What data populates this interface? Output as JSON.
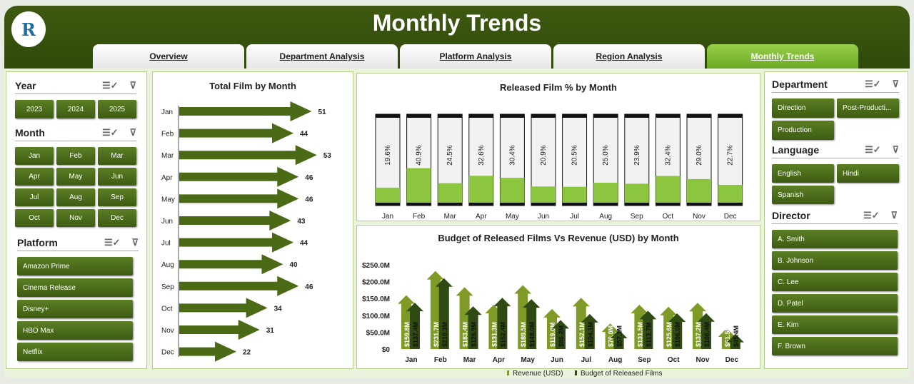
{
  "header": {
    "title": "Monthly Trends",
    "logo_text": "R"
  },
  "tabs": [
    {
      "label": "Overview"
    },
    {
      "label": "Department Analysis"
    },
    {
      "label": "Platform Analysis"
    },
    {
      "label": "Region Analysis"
    },
    {
      "label": "Monthly Trends",
      "active": true
    }
  ],
  "slicers": {
    "year": {
      "title": "Year",
      "items": [
        "2023",
        "2024",
        "2025"
      ]
    },
    "month": {
      "title": "Month",
      "items": [
        "Jan",
        "Feb",
        "Mar",
        "Apr",
        "May",
        "Jun",
        "Jul",
        "Aug",
        "Sep",
        "Oct",
        "Nov",
        "Dec"
      ]
    },
    "platform": {
      "title": "Platform",
      "items": [
        "Amazon Prime",
        "Cinema Release",
        "Disney+",
        "HBO Max",
        "Netflix"
      ]
    },
    "department": {
      "title": "Department",
      "items": [
        "Direction",
        "Post-Producti...",
        "Production"
      ]
    },
    "language": {
      "title": "Language",
      "items": [
        "English",
        "Hindi",
        "Spanish"
      ]
    },
    "director": {
      "title": "Director",
      "items": [
        "A. Smith",
        "B. Johnson",
        "C. Lee",
        "D. Patel",
        "E. Kim",
        "F. Brown"
      ]
    }
  },
  "chart_data": [
    {
      "type": "bar",
      "title": "Total Film by Month",
      "categories": [
        "Jan",
        "Feb",
        "Mar",
        "Apr",
        "May",
        "Jun",
        "Jul",
        "Aug",
        "Sep",
        "Oct",
        "Nov",
        "Dec"
      ],
      "values": [
        51,
        44,
        53,
        46,
        46,
        43,
        44,
        40,
        46,
        34,
        31,
        22
      ]
    },
    {
      "type": "bar",
      "title": "Released Film % by Month",
      "categories": [
        "Jan",
        "Feb",
        "Mar",
        "Apr",
        "May",
        "Jun",
        "Jul",
        "Aug",
        "Sep",
        "Oct",
        "Nov",
        "Dec"
      ],
      "values": [
        19.6,
        40.9,
        24.5,
        32.6,
        30.4,
        20.9,
        20.5,
        25.0,
        23.9,
        32.4,
        29.0,
        22.7
      ],
      "labels": [
        "19.6%",
        "40.9%",
        "24.5%",
        "32.6%",
        "30.4%",
        "20.9%",
        "20.5%",
        "25.0%",
        "23.9%",
        "32.4%",
        "29.0%",
        "22.7%"
      ],
      "ylim": [
        0,
        100
      ]
    },
    {
      "type": "bar",
      "title": "Budget of Released Films Vs Revenue (USD) by Month",
      "categories": [
        "Jan",
        "Feb",
        "Mar",
        "Apr",
        "May",
        "Jun",
        "Jul",
        "Aug",
        "Sep",
        "Oct",
        "Nov",
        "Dec"
      ],
      "yticks": [
        "$0",
        "$50.0M",
        "$100.0M",
        "$150.0M",
        "$200.0M",
        "$250.0M"
      ],
      "ylim": [
        0,
        250
      ],
      "series": [
        {
          "name": "Revenue (USD)",
          "color": "#7f9a26",
          "values": [
            159.8,
            231.7,
            183.4,
            131.3,
            189.5,
            119.0,
            152.1,
            76.0,
            131.5,
            125.6,
            137.2,
            61.5
          ],
          "labels": [
            "$159.8M",
            "$231.7M",
            "$183.4M",
            "$131.3M",
            "$189.5M",
            "$119.0M",
            "$152.1M",
            "$76.0M",
            "$131.5M",
            "$125.6M",
            "$137.2M",
            "$61.5M"
          ]
        },
        {
          "name": "Budget of Released Films",
          "color": "#2f4a12",
          "values": [
            137.4,
            210.3,
            126.9,
            152.4,
            148.0,
            86.2,
            104.1,
            57.1,
            113.7,
            106.0,
            106.4,
            45.4
          ],
          "labels": [
            "$137.4M",
            "$210.3M",
            "$126.9M",
            "$152.4M",
            "$148.0M",
            "$86.2M",
            "$104.1M",
            "$57.1M",
            "$113.7M",
            "$106.0M",
            "$106.4M",
            "$45.4M"
          ]
        }
      ],
      "legend": "bottom"
    }
  ]
}
